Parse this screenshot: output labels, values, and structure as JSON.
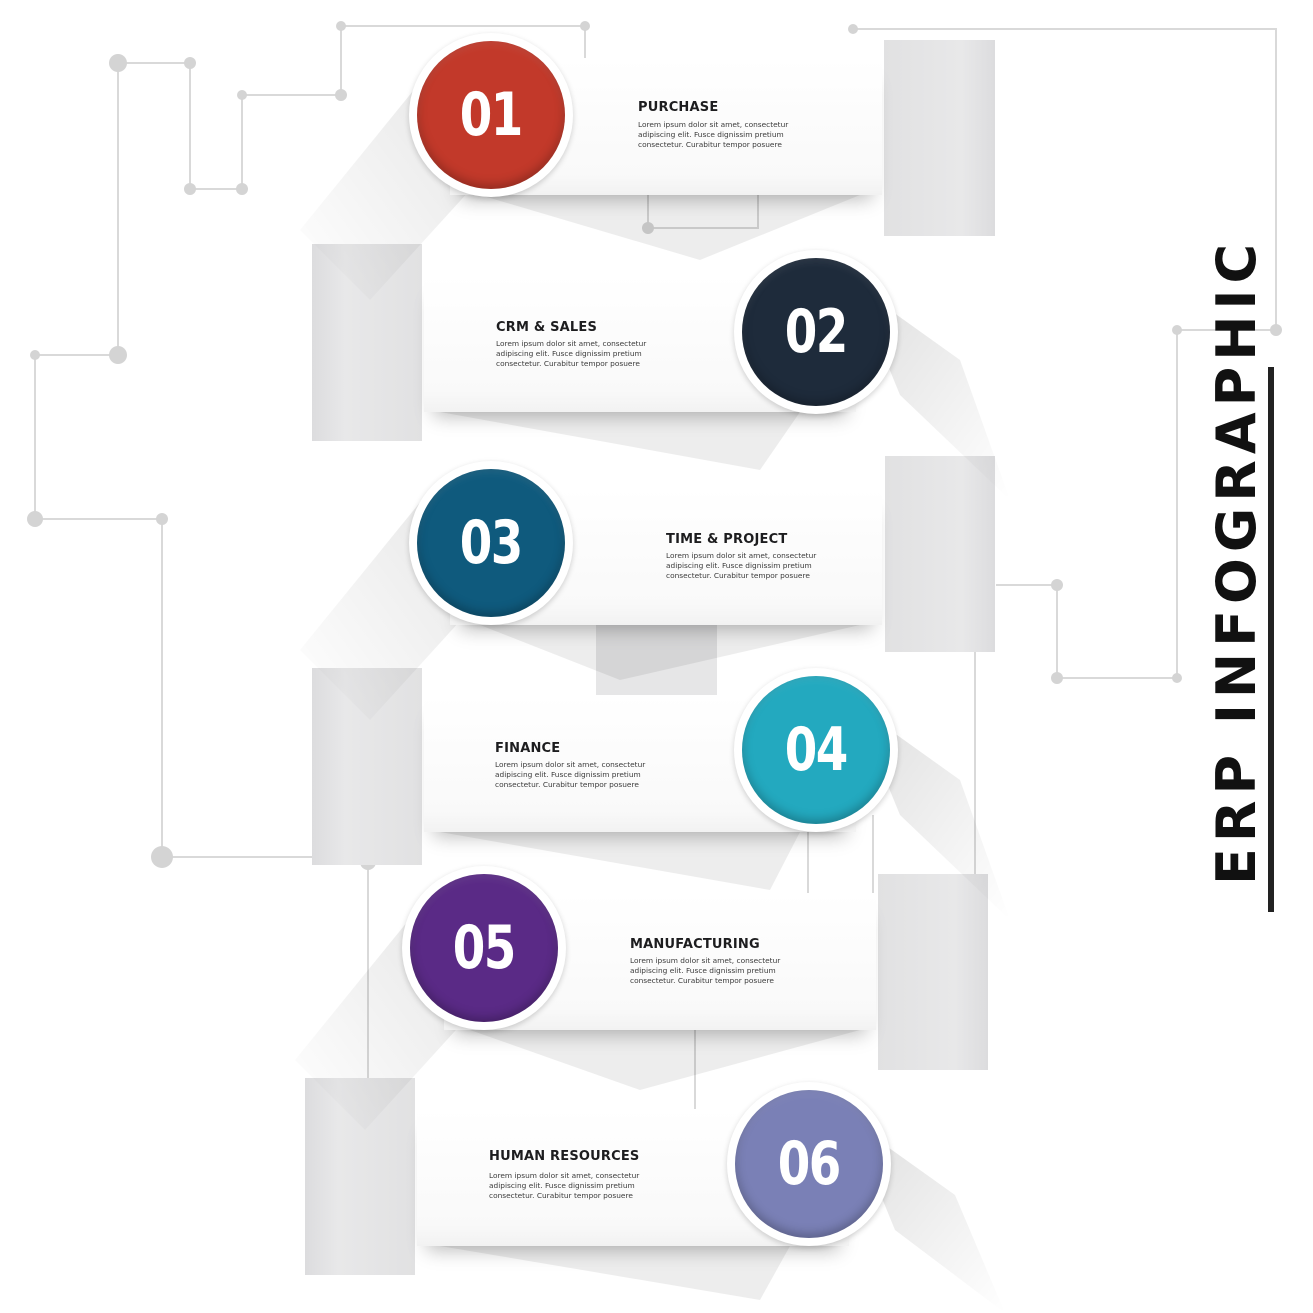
{
  "title": "ERP INFOGRAPHIC",
  "colors": {
    "step1": "#c2392a",
    "step2": "#1e2b3b",
    "step3": "#0f5a7d",
    "step4": "#23a9bf",
    "step5": "#5a2a86",
    "step6": "#7a80b6",
    "connector": "#d7d7d7",
    "tab": "#e6e6e7"
  },
  "steps": [
    {
      "number": "01",
      "title": "PURCHASE",
      "body": "Lorem ipsum dolor sit amet, consectetur adipiscing elit. Fusce dignissim pretium consectetur. Curabitur tempor posuere"
    },
    {
      "number": "02",
      "title": "CRM & SALES",
      "body": "Lorem ipsum dolor sit amet, consectetur adipiscing elit. Fusce dignissim pretium consectetur. Curabitur tempor posuere"
    },
    {
      "number": "03",
      "title": "TIME & PROJECT",
      "body": "Lorem ipsum dolor sit amet, consectetur adipiscing elit. Fusce dignissim pretium consectetur. Curabitur tempor posuere"
    },
    {
      "number": "04",
      "title": "FINANCE",
      "body": "Lorem ipsum dolor sit amet, consectetur adipiscing elit. Fusce dignissim pretium consectetur. Curabitur tempor posuere"
    },
    {
      "number": "05",
      "title": "MANUFACTURING",
      "body": "Lorem ipsum dolor sit amet, consectetur adipiscing elit. Fusce dignissim pretium consectetur. Curabitur tempor posuere"
    },
    {
      "number": "06",
      "title": "HUMAN RESOURCES",
      "body": "Lorem ipsum dolor sit amet, consectetur adipiscing elit. Fusce dignissim pretium consectetur. Curabitur tempor posuere"
    }
  ]
}
